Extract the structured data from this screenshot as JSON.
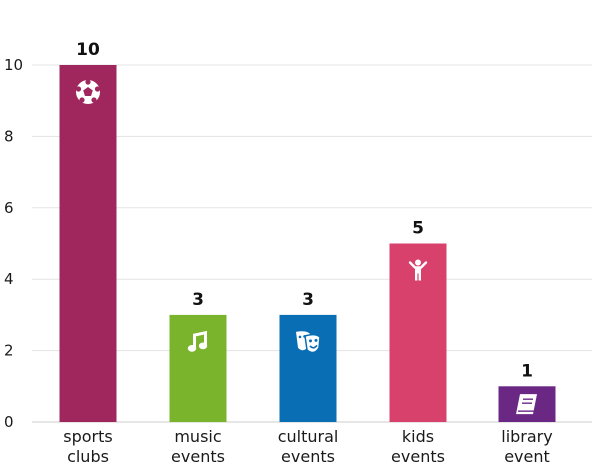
{
  "chart_data": {
    "type": "bar",
    "title": "",
    "xlabel": "",
    "ylabel": "",
    "ylim": [
      0,
      10
    ],
    "yticks": [
      0,
      2,
      4,
      6,
      8,
      10
    ],
    "grid": true,
    "categories": [
      {
        "lines": [
          "sports",
          "clubs"
        ],
        "value": 10,
        "value_label": "10",
        "color": "#a0275e",
        "icon": "soccer-ball-icon"
      },
      {
        "lines": [
          "music",
          "events"
        ],
        "value": 3,
        "value_label": "3",
        "color": "#7ab42c",
        "icon": "music-note-icon"
      },
      {
        "lines": [
          "cultural",
          "events"
        ],
        "value": 3,
        "value_label": "3",
        "color": "#0a6eb4",
        "icon": "theater-masks-icon"
      },
      {
        "lines": [
          "kids",
          "events"
        ],
        "value": 5,
        "value_label": "5",
        "color": "#d8416c",
        "icon": "child-icon"
      },
      {
        "lines": [
          "library",
          "event"
        ],
        "value": 1,
        "value_label": "1",
        "color": "#6a2784",
        "icon": "book-icon"
      }
    ]
  }
}
